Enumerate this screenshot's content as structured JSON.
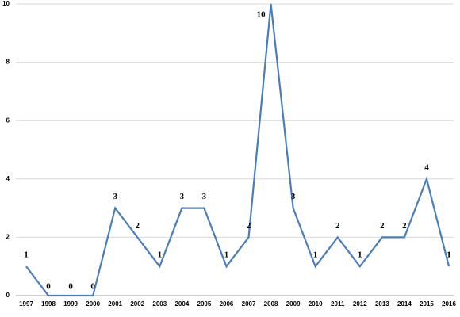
{
  "chart_data": {
    "type": "line",
    "categories": [
      "1997",
      "1998",
      "1999",
      "2000",
      "2001",
      "2002",
      "2003",
      "2004",
      "2005",
      "2006",
      "2007",
      "2008",
      "2009",
      "2010",
      "2011",
      "2012",
      "2013",
      "2014",
      "2015",
      "2016"
    ],
    "values": [
      1,
      0,
      0,
      0,
      3,
      2,
      1,
      3,
      3,
      1,
      2,
      10,
      3,
      1,
      2,
      1,
      2,
      2,
      4,
      1
    ],
    "color": "#4a7ebb",
    "ylim": [
      0,
      10
    ],
    "yticks": [
      0,
      2,
      4,
      6,
      8,
      10
    ],
    "grid": true
  }
}
